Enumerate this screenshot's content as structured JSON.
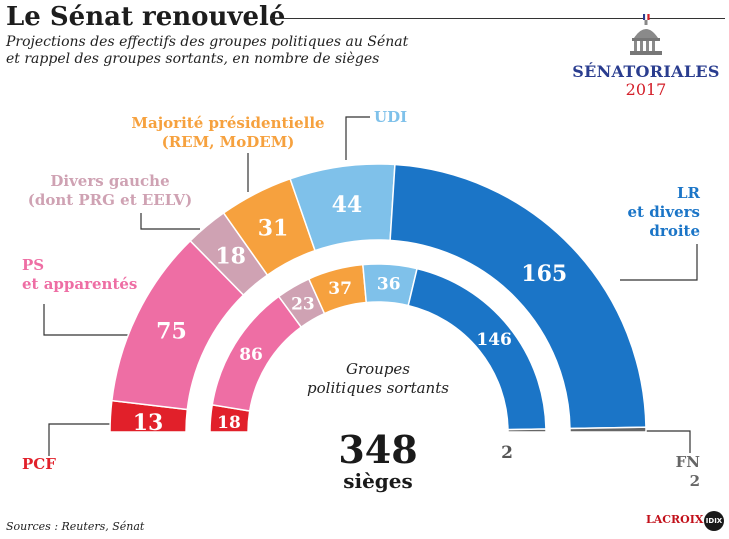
{
  "header": {
    "title": "Le Sénat renouvelé",
    "subtitle_line1": "Projections des effectifs des groupes politiques au Sénat",
    "subtitle_line2": "et rappel des  groupes sortants, en nombre de sièges"
  },
  "logo": {
    "text": "SÉNATORIALES",
    "year": "2017",
    "icon": "senate-dome-icon"
  },
  "labels": {
    "pcf": "PCF",
    "ps_line1": "PS",
    "ps_line2": "et apparentés",
    "divg_line1": "Divers gauche",
    "divg_line2": "(dont PRG et EELV)",
    "maj_line1": "Majorité présidentielle",
    "maj_line2": "(REM, MoDEM)",
    "udi": "UDI",
    "lr_line1": "LR",
    "lr_line2": "et divers",
    "lr_line3": "droite",
    "fn_line1": "FN",
    "fn_line2": "2"
  },
  "center": {
    "line1": "Groupes",
    "line2": "politiques sortants",
    "total_value": "348",
    "total_unit": "sièges"
  },
  "footer": {
    "source": "Sources : Reuters, Sénat",
    "brand": "LACROIX",
    "badge": "IDIX"
  },
  "chart_data": {
    "type": "pie",
    "shape": "half-donut",
    "total": 348,
    "categories": [
      "PCF",
      "PS et apparentés",
      "Divers gauche (dont PRG et EELV)",
      "Majorité présidentielle (REM, MoDEM)",
      "UDI",
      "LR et divers droite",
      "FN"
    ],
    "colors": [
      "#e1202a",
      "#ee6ea4",
      "#cfa2b3",
      "#f6a13e",
      "#7fc1ea",
      "#1b75c7",
      "#666666"
    ],
    "series": [
      {
        "name": "",
        "values": [
          13,
          75,
          18,
          31,
          44,
          165,
          2
        ]
      },
      {
        "name": "Groupes politiques sortants",
        "values": [
          18,
          86,
          23,
          37,
          36,
          146,
          2
        ]
      }
    ]
  }
}
